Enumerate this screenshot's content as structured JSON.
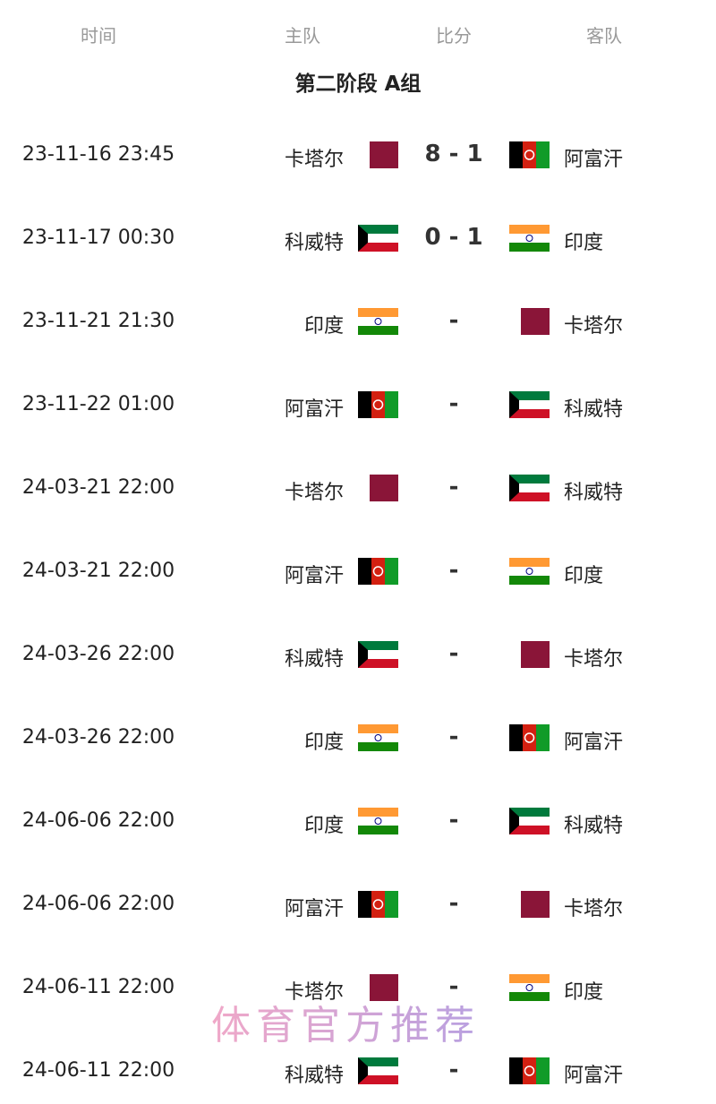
{
  "header": {
    "time": "时间",
    "home": "主队",
    "score": "比分",
    "away": "客队"
  },
  "title": "第二阶段 A组",
  "matches": [
    {
      "time": "23-11-16 23:45",
      "home": "卡塔尔",
      "home_flag": "QA",
      "score": "8 - 1",
      "away": "阿富汗",
      "away_flag": "AF"
    },
    {
      "time": "23-11-17 00:30",
      "home": "科威特",
      "home_flag": "KW",
      "score": "0 - 1",
      "away": "印度",
      "away_flag": "IN"
    },
    {
      "time": "23-11-21 21:30",
      "home": "印度",
      "home_flag": "IN",
      "score": "-",
      "away": "卡塔尔",
      "away_flag": "QA"
    },
    {
      "time": "23-11-22 01:00",
      "home": "阿富汗",
      "home_flag": "AF",
      "score": "-",
      "away": "科威特",
      "away_flag": "KW"
    },
    {
      "time": "24-03-21 22:00",
      "home": "卡塔尔",
      "home_flag": "QA",
      "score": "-",
      "away": "科威特",
      "away_flag": "KW"
    },
    {
      "time": "24-03-21 22:00",
      "home": "阿富汗",
      "home_flag": "AF",
      "score": "-",
      "away": "印度",
      "away_flag": "IN"
    },
    {
      "time": "24-03-26 22:00",
      "home": "科威特",
      "home_flag": "KW",
      "score": "-",
      "away": "卡塔尔",
      "away_flag": "QA"
    },
    {
      "time": "24-03-26 22:00",
      "home": "印度",
      "home_flag": "IN",
      "score": "-",
      "away": "阿富汗",
      "away_flag": "AF"
    },
    {
      "time": "24-06-06 22:00",
      "home": "印度",
      "home_flag": "IN",
      "score": "-",
      "away": "科威特",
      "away_flag": "KW"
    },
    {
      "time": "24-06-06 22:00",
      "home": "阿富汗",
      "home_flag": "AF",
      "score": "-",
      "away": "卡塔尔",
      "away_flag": "QA"
    },
    {
      "time": "24-06-11 22:00",
      "home": "卡塔尔",
      "home_flag": "QA",
      "score": "-",
      "away": "印度",
      "away_flag": "IN"
    },
    {
      "time": "24-06-11 22:00",
      "home": "科威特",
      "home_flag": "KW",
      "score": "-",
      "away": "阿富汗",
      "away_flag": "AF"
    }
  ],
  "watermark": "体育官方推荐"
}
